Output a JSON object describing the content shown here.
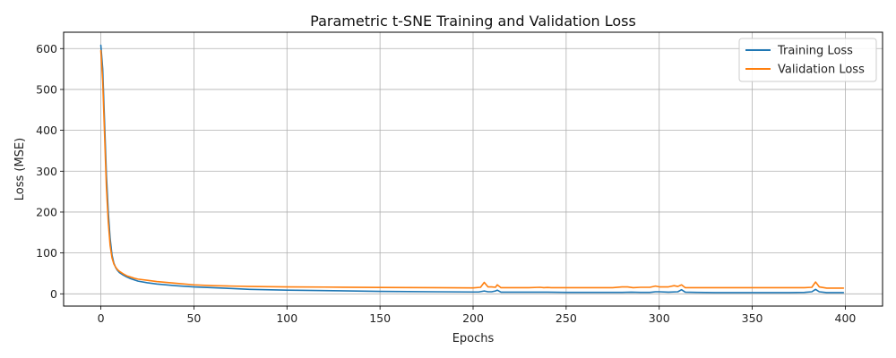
{
  "chart_data": {
    "type": "line",
    "title": "Parametric t-SNE Training and Validation Loss",
    "xlabel": "Epochs",
    "ylabel": "Loss (MSE)",
    "xlim": [
      -20,
      420
    ],
    "ylim": [
      -30,
      640
    ],
    "xticks": [
      0,
      50,
      100,
      150,
      200,
      250,
      300,
      350,
      400
    ],
    "yticks": [
      0,
      100,
      200,
      300,
      400,
      500,
      600
    ],
    "grid": true,
    "legend_position": "top-right",
    "colors": {
      "training": "#1f77b4",
      "validation": "#ff7f0e",
      "grid": "#b0b0b0"
    },
    "series": [
      {
        "name": "Training Loss",
        "color": "#1f77b4",
        "x": [
          0,
          1,
          2,
          3,
          4,
          5,
          6,
          7,
          8,
          9,
          10,
          12,
          14,
          16,
          18,
          20,
          25,
          30,
          40,
          50,
          60,
          70,
          80,
          100,
          120,
          150,
          180,
          200,
          203,
          206,
          208,
          210,
          212,
          213,
          215,
          218,
          230,
          240,
          250,
          260,
          270,
          280,
          285,
          290,
          295,
          298,
          300,
          305,
          310,
          312,
          314,
          320,
          330,
          340,
          350,
          360,
          370,
          378,
          382,
          384,
          386,
          390,
          395,
          399
        ],
        "y": [
          608,
          550,
          420,
          290,
          200,
          135,
          95,
          75,
          64,
          57,
          52,
          46,
          41,
          37,
          34,
          31,
          27,
          24,
          20,
          17,
          15,
          13,
          11,
          9,
          8,
          6,
          5,
          4.5,
          4.5,
          7,
          5,
          5,
          7,
          9,
          4,
          4,
          4,
          4,
          3.5,
          3.5,
          3.5,
          3.5,
          4,
          3.5,
          3.5,
          5,
          5,
          4,
          5,
          10,
          4,
          3.5,
          3,
          3,
          3,
          3,
          3,
          3.5,
          5,
          11,
          5,
          3,
          3,
          3
        ]
      },
      {
        "name": "Validation Loss",
        "color": "#ff7f0e",
        "x": [
          0,
          1,
          2,
          3,
          4,
          5,
          6,
          7,
          8,
          9,
          10,
          12,
          14,
          16,
          18,
          20,
          25,
          30,
          40,
          50,
          60,
          70,
          80,
          100,
          120,
          150,
          180,
          200,
          204,
          206,
          208,
          210,
          212,
          213,
          215,
          220,
          230,
          236,
          238,
          240,
          242,
          250,
          260,
          270,
          275,
          280,
          283,
          286,
          290,
          295,
          298,
          300,
          305,
          308,
          310,
          312,
          314,
          320,
          330,
          340,
          350,
          360,
          370,
          378,
          382,
          384,
          386,
          390,
          395,
          399
        ],
        "y": [
          595,
          520,
          390,
          260,
          175,
          118,
          88,
          73,
          65,
          59,
          55,
          49,
          44,
          41,
          38,
          36,
          33,
          30,
          26,
          22,
          20,
          19,
          18,
          17,
          16.5,
          15.5,
          15,
          14.5,
          16,
          28,
          17,
          17,
          16,
          22,
          15,
          15,
          15,
          16,
          15,
          15.5,
          15,
          15,
          15,
          15,
          15,
          17,
          17,
          15,
          16,
          16,
          19,
          17,
          17,
          20,
          18,
          22,
          15,
          15,
          15,
          15,
          15,
          15,
          15,
          15,
          16,
          29,
          17,
          14,
          14,
          14
        ]
      }
    ]
  }
}
